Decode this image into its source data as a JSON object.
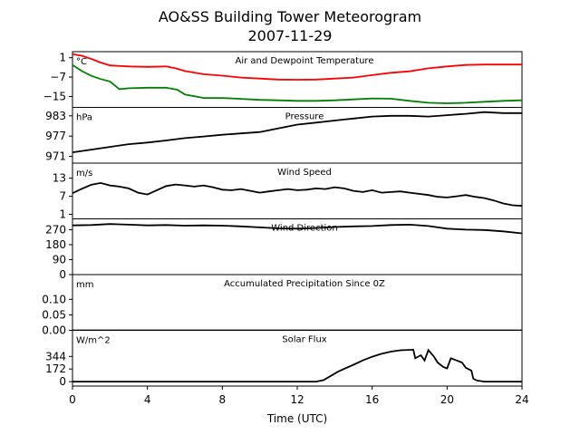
{
  "chart_data": {
    "type": "line",
    "title": "AO&SS Building Tower Meteorogram",
    "subtitle": "2007-11-29",
    "xlabel": "Time (UTC)",
    "xlim": [
      0,
      24
    ],
    "x_ticks": [
      0,
      4,
      8,
      12,
      16,
      20,
      24
    ],
    "panels": [
      {
        "title": "Air and Dewpoint Temperature",
        "unit": "°C",
        "ylim": [
          -19.5,
          3.5
        ],
        "y_ticks": [
          1,
          -7,
          -15
        ],
        "y_tick_labels": [
          "1",
          "−7",
          "−15"
        ],
        "series": [
          {
            "color": "#ff0000",
            "points": [
              [
                0,
                2.5
              ],
              [
                0.5,
                1.8
              ],
              [
                1,
                0.5
              ],
              [
                1.5,
                -1
              ],
              [
                2,
                -2.2
              ],
              [
                3,
                -2.6
              ],
              [
                4,
                -2.8
              ],
              [
                5,
                -2.6
              ],
              [
                5.5,
                -3.4
              ],
              [
                6,
                -4.5
              ],
              [
                7,
                -5.8
              ],
              [
                8,
                -6.4
              ],
              [
                9,
                -7.2
              ],
              [
                10,
                -7.6
              ],
              [
                11,
                -8
              ],
              [
                12,
                -8.1
              ],
              [
                13,
                -8
              ],
              [
                14,
                -7.6
              ],
              [
                15,
                -7.2
              ],
              [
                16,
                -6.2
              ],
              [
                17,
                -5.2
              ],
              [
                18,
                -4.6
              ],
              [
                19,
                -3.4
              ],
              [
                20,
                -2.6
              ],
              [
                21,
                -2
              ],
              [
                22,
                -1.8
              ],
              [
                23,
                -1.8
              ],
              [
                24,
                -1.8
              ]
            ]
          },
          {
            "color": "#008000",
            "points": [
              [
                0,
                -2
              ],
              [
                0.5,
                -4.5
              ],
              [
                1,
                -6.5
              ],
              [
                1.5,
                -7.8
              ],
              [
                2,
                -8.8
              ],
              [
                2.5,
                -12
              ],
              [
                3,
                -11.6
              ],
              [
                4,
                -11.4
              ],
              [
                5,
                -11.4
              ],
              [
                5.6,
                -12.2
              ],
              [
                6,
                -14.2
              ],
              [
                7,
                -15.6
              ],
              [
                8,
                -15.6
              ],
              [
                9,
                -16
              ],
              [
                10,
                -16.4
              ],
              [
                11,
                -16.6
              ],
              [
                12,
                -16.8
              ],
              [
                13,
                -16.8
              ],
              [
                14,
                -16.6
              ],
              [
                15,
                -16.2
              ],
              [
                16,
                -15.8
              ],
              [
                17,
                -15.9
              ],
              [
                18,
                -16.8
              ],
              [
                19,
                -17.6
              ],
              [
                20,
                -17.8
              ],
              [
                21,
                -17.6
              ],
              [
                22,
                -17.2
              ],
              [
                23,
                -16.8
              ],
              [
                24,
                -16.6
              ]
            ]
          }
        ]
      },
      {
        "title": "Pressure",
        "unit": "hPa",
        "ylim": [
          969.0,
          985.5
        ],
        "y_ticks": [
          983,
          977,
          971
        ],
        "y_tick_labels": [
          "983",
          "977",
          "971"
        ],
        "series": [
          {
            "color": "#000000",
            "points": [
              [
                0,
                972.2
              ],
              [
                1,
                973
              ],
              [
                2,
                973.8
              ],
              [
                3,
                974.6
              ],
              [
                4,
                975.1
              ],
              [
                5,
                975.7
              ],
              [
                6,
                976.4
              ],
              [
                7,
                976.9
              ],
              [
                8,
                977.4
              ],
              [
                9,
                977.8
              ],
              [
                10,
                978.2
              ],
              [
                11,
                979.3
              ],
              [
                12,
                980.4
              ],
              [
                13,
                981
              ],
              [
                14,
                981.6
              ],
              [
                15,
                982.2
              ],
              [
                16,
                982.8
              ],
              [
                17,
                983
              ],
              [
                18,
                983
              ],
              [
                19,
                982.8
              ],
              [
                20,
                983.2
              ],
              [
                21,
                983.6
              ],
              [
                22,
                984.1
              ],
              [
                23,
                983.8
              ],
              [
                24,
                983.8
              ]
            ]
          }
        ]
      },
      {
        "title": "Wind Speed",
        "unit": "m/s",
        "ylim": [
          -0.5,
          18
        ],
        "y_ticks": [
          13,
          7,
          1
        ],
        "y_tick_labels": [
          "13",
          "7",
          "1"
        ],
        "series": [
          {
            "color": "#000000",
            "points": [
              [
                0,
                8
              ],
              [
                0.5,
                9.5
              ],
              [
                1,
                10.8
              ],
              [
                1.5,
                11.4
              ],
              [
                2,
                10.6
              ],
              [
                2.5,
                10.2
              ],
              [
                3,
                9.6
              ],
              [
                3.5,
                8.2
              ],
              [
                4,
                7.6
              ],
              [
                4.5,
                9
              ],
              [
                5,
                10.4
              ],
              [
                5.5,
                10.9
              ],
              [
                6,
                10.6
              ],
              [
                6.5,
                10.2
              ],
              [
                7,
                10.6
              ],
              [
                7.5,
                10
              ],
              [
                8,
                9.2
              ],
              [
                8.5,
                9
              ],
              [
                9,
                9.4
              ],
              [
                9.5,
                8.8
              ],
              [
                10,
                8.2
              ],
              [
                10.5,
                8.6
              ],
              [
                11,
                9
              ],
              [
                11.5,
                9.4
              ],
              [
                12,
                9
              ],
              [
                12.5,
                9.2
              ],
              [
                13,
                9.6
              ],
              [
                13.5,
                9.4
              ],
              [
                14,
                10
              ],
              [
                14.5,
                9.6
              ],
              [
                15,
                8.8
              ],
              [
                15.5,
                8.4
              ],
              [
                16,
                9
              ],
              [
                16.5,
                8.2
              ],
              [
                17,
                8.4
              ],
              [
                17.5,
                8.6
              ],
              [
                18,
                8.2
              ],
              [
                18.5,
                7.8
              ],
              [
                19,
                7.4
              ],
              [
                19.5,
                6.8
              ],
              [
                20,
                6.6
              ],
              [
                20.5,
                7
              ],
              [
                21,
                7.4
              ],
              [
                21.5,
                6.8
              ],
              [
                22,
                6.4
              ],
              [
                22.5,
                5.6
              ],
              [
                23,
                4.6
              ],
              [
                23.5,
                4
              ],
              [
                24,
                3.8
              ]
            ]
          }
        ]
      },
      {
        "title": "Wind Direction",
        "unit": "",
        "ylim": [
          0,
          335
        ],
        "y_ticks": [
          270,
          180,
          90,
          0
        ],
        "y_tick_labels": [
          "270",
          "180",
          "90",
          "0"
        ],
        "series": [
          {
            "color": "#000000",
            "points": [
              [
                0,
                296
              ],
              [
                1,
                298
              ],
              [
                2,
                304
              ],
              [
                3,
                300
              ],
              [
                4,
                296
              ],
              [
                5,
                298
              ],
              [
                6,
                294
              ],
              [
                7,
                296
              ],
              [
                8,
                294
              ],
              [
                9,
                290
              ],
              [
                10,
                284
              ],
              [
                11,
                278
              ],
              [
                12,
                276
              ],
              [
                13,
                280
              ],
              [
                14,
                286
              ],
              [
                15,
                290
              ],
              [
                16,
                292
              ],
              [
                17,
                298
              ],
              [
                18,
                300
              ],
              [
                19,
                292
              ],
              [
                20,
                276
              ],
              [
                21,
                270
              ],
              [
                22,
                268
              ],
              [
                23,
                260
              ],
              [
                24,
                248
              ]
            ]
          }
        ]
      },
      {
        "title": "Accumulated Precipitation Since 0Z",
        "unit": "mm",
        "ylim": [
          0,
          0.18
        ],
        "y_ticks": [
          0.1,
          0.05,
          0.0
        ],
        "y_tick_labels": [
          "0.10",
          "0.05",
          "0.00"
        ],
        "series": [
          {
            "color": "#000000",
            "points": [
              [
                0,
                0
              ],
              [
                24,
                0
              ]
            ]
          }
        ]
      },
      {
        "title": "Solar Flux",
        "unit": "W/m^2",
        "ylim": [
          -60,
          700
        ],
        "y_ticks": [
          344,
          172,
          0
        ],
        "y_tick_labels": [
          "344",
          "172",
          "0"
        ],
        "series": [
          {
            "color": "#000000",
            "points": [
              [
                0,
                0
              ],
              [
                13,
                0
              ],
              [
                13.4,
                20
              ],
              [
                13.8,
                80
              ],
              [
                14.2,
                140
              ],
              [
                15,
                230
              ],
              [
                15.5,
                290
              ],
              [
                16,
                340
              ],
              [
                16.5,
                380
              ],
              [
                17,
                410
              ],
              [
                17.5,
                428
              ],
              [
                18.2,
                435
              ],
              [
                18.3,
                320
              ],
              [
                18.6,
                360
              ],
              [
                18.8,
                290
              ],
              [
                19,
                430
              ],
              [
                19.3,
                340
              ],
              [
                19.5,
                260
              ],
              [
                19.8,
                200
              ],
              [
                20,
                180
              ],
              [
                20.2,
                320
              ],
              [
                20.5,
                290
              ],
              [
                20.8,
                260
              ],
              [
                21,
                190
              ],
              [
                21.3,
                150
              ],
              [
                21.4,
                40
              ],
              [
                21.6,
                15
              ],
              [
                22,
                0
              ],
              [
                24,
                0
              ]
            ]
          }
        ]
      }
    ]
  }
}
